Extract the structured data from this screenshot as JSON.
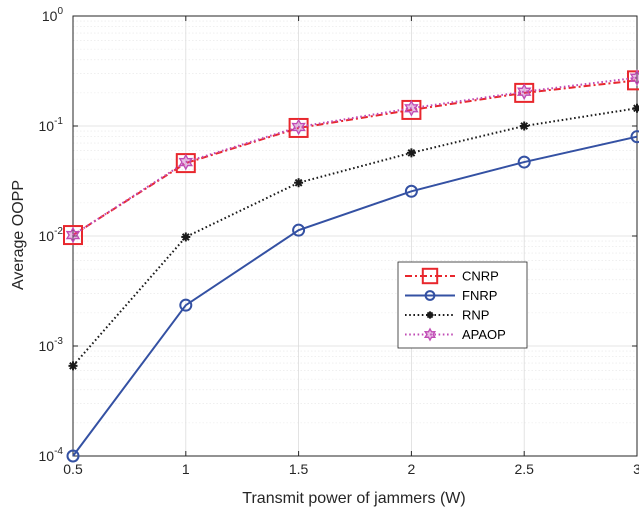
{
  "chart_data": {
    "type": "line",
    "title": "",
    "xlabel": "Transmit power of jammers (W)",
    "ylabel": "Average OOPP",
    "yscale": "log",
    "xlim": [
      0.5,
      3
    ],
    "ylim": [
      0.0001,
      1
    ],
    "x": [
      0.5,
      1,
      1.5,
      2,
      2.5,
      3
    ],
    "x_tick_labels": [
      "0.5",
      "1",
      "1.5",
      "2",
      "2.5",
      "3"
    ],
    "y_ticks": [
      {
        "value": 0.0001,
        "base": "10",
        "exp": "-4"
      },
      {
        "value": 0.001,
        "base": "10",
        "exp": "-3"
      },
      {
        "value": 0.01,
        "base": "10",
        "exp": "-2"
      },
      {
        "value": 0.1,
        "base": "10",
        "exp": "-1"
      },
      {
        "value": 1,
        "base": "10",
        "exp": "0"
      }
    ],
    "grid": true,
    "minor_grid": true,
    "legend_position": "center-right",
    "series": [
      {
        "name": "CNRP",
        "color": "#e8272d",
        "line": "dashdot",
        "marker": "square",
        "values": [
          0.0102,
          0.046,
          0.096,
          0.14,
          0.2,
          0.26
        ]
      },
      {
        "name": "FNRP",
        "color": "#3451a3",
        "line": "solid",
        "marker": "circle",
        "values": [
          0.0001,
          0.00235,
          0.0113,
          0.0255,
          0.047,
          0.08
        ]
      },
      {
        "name": "RNP",
        "color": "#1a1a1a",
        "line": "dotted",
        "marker": "asterisk",
        "values": [
          0.00066,
          0.0098,
          0.0305,
          0.057,
          0.1,
          0.145
        ]
      },
      {
        "name": "APAOP",
        "color": "#c04bb5",
        "line": "dotted",
        "marker": "hexagram",
        "values": [
          0.0102,
          0.047,
          0.098,
          0.145,
          0.205,
          0.275
        ]
      }
    ]
  }
}
